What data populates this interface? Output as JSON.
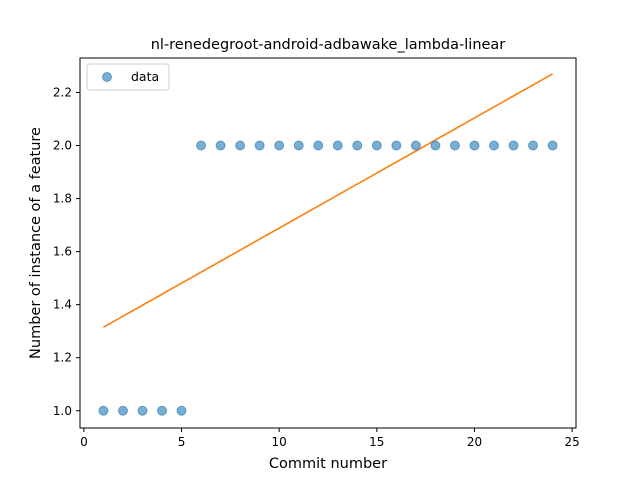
{
  "chart_data": {
    "type": "scatter",
    "title": "nl-renedegroot-android-adbawake_lambda-linear",
    "xlabel": "Commit number",
    "ylabel": "Number of instance of a feature",
    "xlim": [
      -0.2,
      25.2
    ],
    "ylim": [
      0.935,
      2.33
    ],
    "xticks": [
      0,
      5,
      10,
      15,
      20,
      25
    ],
    "yticks": [
      1.0,
      1.2,
      1.4,
      1.6,
      1.8,
      2.0,
      2.2
    ],
    "xtick_labels": [
      "0",
      "5",
      "10",
      "15",
      "20",
      "25"
    ],
    "ytick_labels": [
      "1.0",
      "1.2",
      "1.4",
      "1.6",
      "1.8",
      "2.0",
      "2.2"
    ],
    "legend": {
      "placement": "top-left",
      "entries": [
        "data"
      ]
    },
    "series": [
      {
        "name": "data",
        "kind": "scatter",
        "color": "#1f77b4",
        "x": [
          1,
          2,
          3,
          4,
          5,
          6,
          7,
          8,
          9,
          10,
          11,
          12,
          13,
          14,
          15,
          16,
          17,
          18,
          19,
          20,
          21,
          22,
          23,
          24
        ],
        "y": [
          1,
          1,
          1,
          1,
          1,
          2,
          2,
          2,
          2,
          2,
          2,
          2,
          2,
          2,
          2,
          2,
          2,
          2,
          2,
          2,
          2,
          2,
          2,
          2
        ]
      },
      {
        "kind": "line",
        "color": "#ff7f0e",
        "x": [
          1,
          24
        ],
        "y": [
          1.315,
          2.27
        ]
      }
    ],
    "grid": false
  }
}
